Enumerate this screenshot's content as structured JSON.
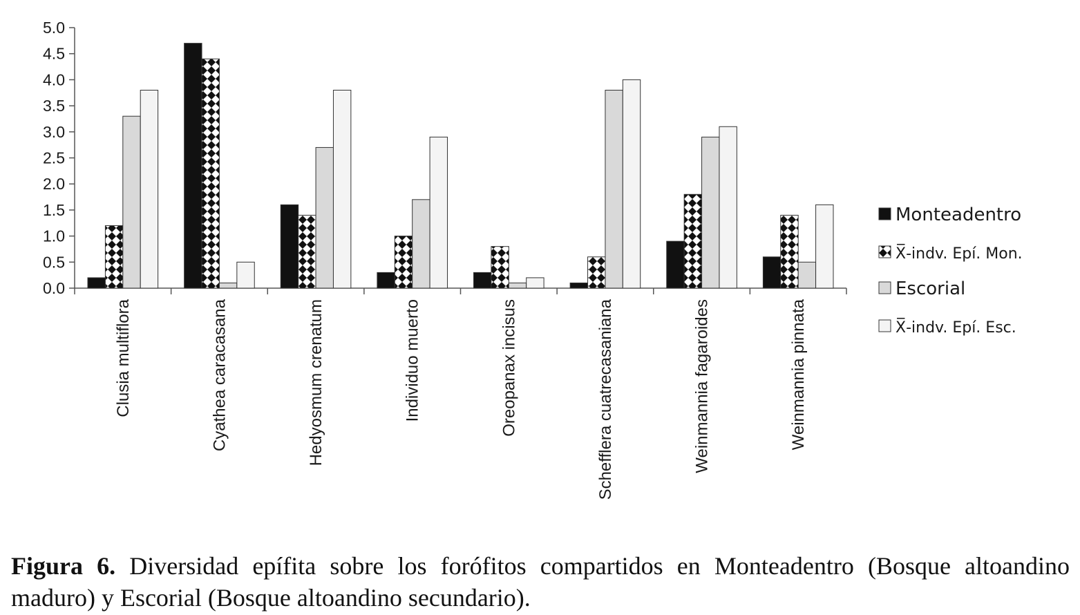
{
  "chart_data": {
    "type": "bar",
    "categories": [
      "Clusia multiflora",
      "Cyathea caracasana",
      "Hedyosmum crenatum",
      "Individuo muerto",
      "Oreopanax incisus",
      "Schefflera cuatrecasaniana",
      "Weinmannia fagaroides",
      "Weinmannia pinnata"
    ],
    "series": [
      {
        "name": "Monteadentro",
        "values": [
          0.2,
          4.7,
          1.6,
          0.3,
          0.3,
          0.1,
          0.9,
          0.6
        ],
        "fill": "#111111",
        "pattern": "solid"
      },
      {
        "name": "X̅-indv. Epí. Mon.",
        "values": [
          1.2,
          4.4,
          1.4,
          1.0,
          0.8,
          0.6,
          1.8,
          1.4
        ],
        "fill": "#ffffff",
        "pattern": "checker"
      },
      {
        "name": "Escorial",
        "values": [
          3.3,
          0.1,
          2.7,
          1.7,
          0.1,
          3.8,
          2.9,
          0.5
        ],
        "fill": "#d9d9d9",
        "pattern": "solid"
      },
      {
        "name": "X̅-indv. Epí. Esc.",
        "values": [
          3.8,
          0.5,
          3.8,
          2.9,
          0.2,
          4.0,
          3.1,
          1.6
        ],
        "fill": "#f4f4f4",
        "pattern": "solid"
      }
    ],
    "yticks": [
      "0.0",
      "0.5",
      "1.0",
      "1.5",
      "2.0",
      "2.5",
      "3.0",
      "3.5",
      "4.0",
      "4.5",
      "5.0"
    ],
    "ylim": [
      0,
      5
    ],
    "xlabel": "",
    "ylabel": "",
    "grid": false,
    "legend_position": "right"
  },
  "caption": {
    "label": "Figura 6.",
    "text": "Diversidad epífita sobre los forófitos compartidos en Monteadentro (Bosque altoandino maduro) y Escorial (Bosque altoandino secundario)."
  }
}
